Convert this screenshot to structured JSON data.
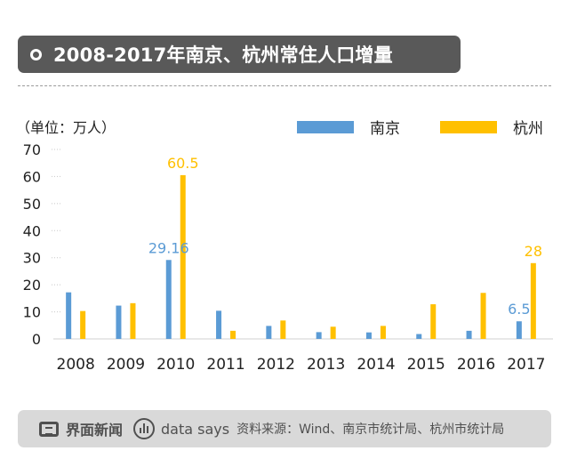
{
  "header": {
    "title": "2008-2017年南京、杭州常住人口增量"
  },
  "unit_label": "（单位：万人）",
  "legend": [
    {
      "name": "南京",
      "color": "#5b9bd5"
    },
    {
      "name": "杭州",
      "color": "#ffc000"
    }
  ],
  "chart_data": {
    "type": "bar",
    "categories": [
      "2008",
      "2009",
      "2010",
      "2011",
      "2012",
      "2013",
      "2014",
      "2015",
      "2016",
      "2017"
    ],
    "series": [
      {
        "name": "南京",
        "color": "#5b9bd5",
        "values": [
          17.2,
          12.3,
          29.16,
          10.4,
          4.8,
          2.5,
          2.4,
          1.8,
          3.0,
          6.5
        ]
      },
      {
        "name": "杭州",
        "color": "#ffc000",
        "values": [
          10.3,
          13.2,
          60.5,
          3.0,
          6.8,
          4.5,
          4.8,
          12.8,
          17.0,
          28
        ]
      }
    ],
    "data_labels": [
      {
        "series": "南京",
        "category": "2010",
        "text": "29.16"
      },
      {
        "series": "杭州",
        "category": "2010",
        "text": "60.5"
      },
      {
        "series": "南京",
        "category": "2017",
        "text": "6.5"
      },
      {
        "series": "杭州",
        "category": "2017",
        "text": "28"
      }
    ],
    "y_ticks": [
      "0",
      "10",
      "20",
      "30",
      "40",
      "50",
      "60",
      "70"
    ],
    "ylim": [
      0,
      70
    ],
    "grid": false,
    "legend_position": "top-right"
  },
  "footer": {
    "brand": "界面新闻",
    "brand_icon": "jiemian-logo-icon",
    "data_says": "data says",
    "data_says_icon": "data-says-icon",
    "source": "资料来源：Wind、南京市统计局、杭州市统计局"
  }
}
